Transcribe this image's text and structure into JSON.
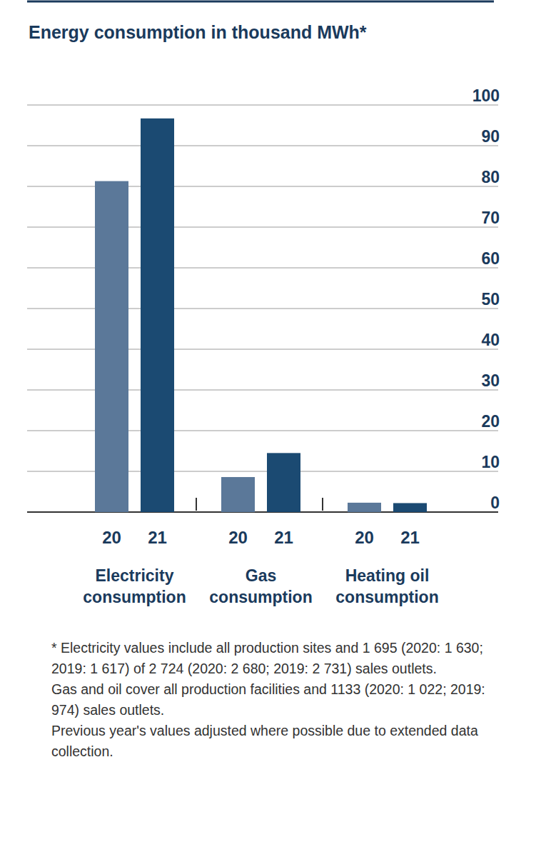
{
  "chart_data": {
    "type": "bar",
    "title": "Energy consumption in thousand MWh*",
    "categories": [
      "Electricity consumption",
      "Gas consumption",
      "Heating oil consumption"
    ],
    "series": [
      {
        "name": "20",
        "color": "#5b7899",
        "values": [
          81.3,
          8.6,
          2.3
        ]
      },
      {
        "name": "21",
        "color": "#1b4a72",
        "values": [
          96.7,
          14.5,
          2.2
        ]
      }
    ],
    "ylim": [
      0,
      100
    ],
    "yticks": [
      0,
      10,
      20,
      30,
      40,
      50,
      60,
      70,
      80,
      90,
      100
    ],
    "grid": true,
    "annotations": [
      "* Electricity values include all production sites and 1 695 (2020: 1 630; 2019: 1 617) of 2 724 (2020: 2 680; 2019: 2 731) sales outlets.",
      "Gas and oil cover all production facilities and 1133 (2020: 1 022; 2019: 974) sales outlets.",
      "Previous year's values adjusted where possible due to extended data collection."
    ]
  }
}
